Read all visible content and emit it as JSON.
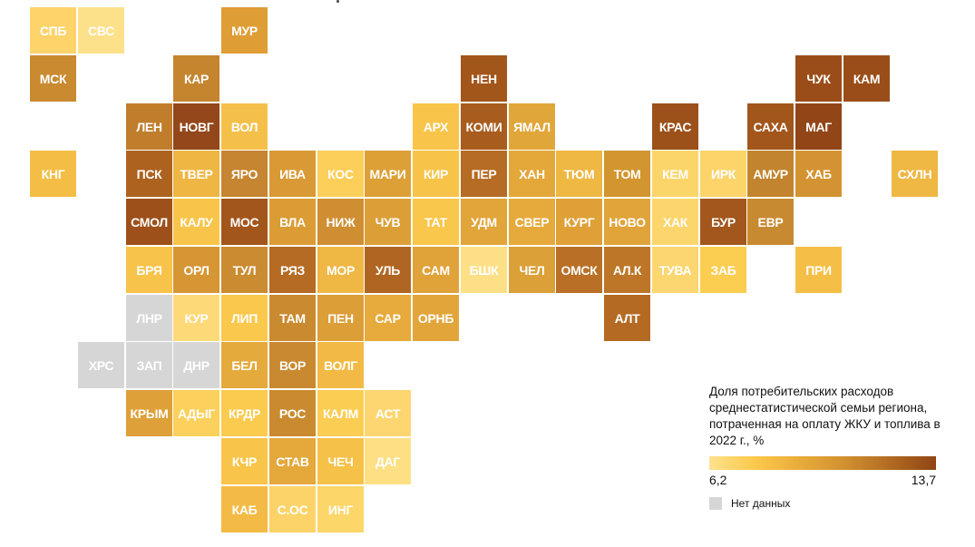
{
  "map": {
    "type": "tile-grid",
    "no_data_color": "#d6d6d6",
    "tiles": [
      {
        "label": "СПБ",
        "col": 0,
        "row": 0,
        "color": "#fdd36a"
      },
      {
        "label": "СВС",
        "col": 1,
        "row": 0,
        "color": "#fde08a"
      },
      {
        "label": "МУР",
        "col": 4,
        "row": 0,
        "color": "#df9d35"
      },
      {
        "label": "МСК",
        "col": 0,
        "row": 1,
        "color": "#c98a30"
      },
      {
        "label": "КАР",
        "col": 3,
        "row": 1,
        "color": "#c5852f"
      },
      {
        "label": "НЕН",
        "col": 9,
        "row": 1,
        "color": "#a3561a"
      },
      {
        "label": "ЧУК",
        "col": 16,
        "row": 1,
        "color": "#9a4d18"
      },
      {
        "label": "КАМ",
        "col": 17,
        "row": 1,
        "color": "#9a4d18"
      },
      {
        "label": "ЛЕН",
        "col": 2,
        "row": 2,
        "color": "#c07e2c"
      },
      {
        "label": "НОВГ",
        "col": 3,
        "row": 2,
        "color": "#93471a"
      },
      {
        "label": "ВОЛ",
        "col": 4,
        "row": 2,
        "color": "#f5c04a"
      },
      {
        "label": "АРХ",
        "col": 8,
        "row": 2,
        "color": "#f8c54a"
      },
      {
        "label": "КОМИ",
        "col": 9,
        "row": 2,
        "color": "#a85c1e"
      },
      {
        "label": "ЯМАЛ",
        "col": 10,
        "row": 2,
        "color": "#e1a63a"
      },
      {
        "label": "КРАС",
        "col": 13,
        "row": 2,
        "color": "#9c511a"
      },
      {
        "label": "САХА",
        "col": 15,
        "row": 2,
        "color": "#a2561c"
      },
      {
        "label": "МАГ",
        "col": 16,
        "row": 2,
        "color": "#924618"
      },
      {
        "label": "КНГ",
        "col": 0,
        "row": 3,
        "color": "#f4bd45"
      },
      {
        "label": "ПСК",
        "col": 2,
        "row": 3,
        "color": "#ad6220"
      },
      {
        "label": "ТВЕР",
        "col": 3,
        "row": 3,
        "color": "#efb644"
      },
      {
        "label": "ЯРО",
        "col": 4,
        "row": 3,
        "color": "#c68530"
      },
      {
        "label": "ИВА",
        "col": 5,
        "row": 3,
        "color": "#d99a35"
      },
      {
        "label": "КОС",
        "col": 6,
        "row": 3,
        "color": "#fbcf5a"
      },
      {
        "label": "МАРИ",
        "col": 7,
        "row": 3,
        "color": "#dca037"
      },
      {
        "label": "КИР",
        "col": 8,
        "row": 3,
        "color": "#f7c449"
      },
      {
        "label": "ПЕР",
        "col": 9,
        "row": 3,
        "color": "#b66c24"
      },
      {
        "label": "ХАН",
        "col": 10,
        "row": 3,
        "color": "#e3a73a"
      },
      {
        "label": "ТЮМ",
        "col": 11,
        "row": 3,
        "color": "#efb843"
      },
      {
        "label": "ТОМ",
        "col": 12,
        "row": 3,
        "color": "#d3952f"
      },
      {
        "label": "КЕМ",
        "col": 13,
        "row": 3,
        "color": "#fcd56a"
      },
      {
        "label": "ИРК",
        "col": 14,
        "row": 3,
        "color": "#fcd46a"
      },
      {
        "label": "АМУР",
        "col": 15,
        "row": 3,
        "color": "#c2842e"
      },
      {
        "label": "ХАБ",
        "col": 16,
        "row": 3,
        "color": "#d49332"
      },
      {
        "label": "СХЛН",
        "col": 18,
        "row": 3,
        "color": "#efb743"
      },
      {
        "label": "СМОЛ",
        "col": 2,
        "row": 4,
        "color": "#9d501a"
      },
      {
        "label": "КАЛУ",
        "col": 3,
        "row": 4,
        "color": "#f8c54a"
      },
      {
        "label": "МОС",
        "col": 4,
        "row": 4,
        "color": "#a3561c"
      },
      {
        "label": "ВЛА",
        "col": 5,
        "row": 4,
        "color": "#db9c36"
      },
      {
        "label": "НИЖ",
        "col": 6,
        "row": 4,
        "color": "#cf8e32"
      },
      {
        "label": "ЧУВ",
        "col": 7,
        "row": 4,
        "color": "#dc9f37"
      },
      {
        "label": "ТАТ",
        "col": 8,
        "row": 4,
        "color": "#f9c74b"
      },
      {
        "label": "УДМ",
        "col": 9,
        "row": 4,
        "color": "#e2a53a"
      },
      {
        "label": "СВЕР",
        "col": 10,
        "row": 4,
        "color": "#e6aa3c"
      },
      {
        "label": "КУРГ",
        "col": 11,
        "row": 4,
        "color": "#dfa037"
      },
      {
        "label": "НОВО",
        "col": 12,
        "row": 4,
        "color": "#e1a43a"
      },
      {
        "label": "ХАК",
        "col": 13,
        "row": 4,
        "color": "#fcd66c"
      },
      {
        "label": "БУР",
        "col": 14,
        "row": 4,
        "color": "#a3571d"
      },
      {
        "label": "ЕВР",
        "col": 15,
        "row": 4,
        "color": "#c88a31"
      },
      {
        "label": "БРЯ",
        "col": 2,
        "row": 5,
        "color": "#f7c34a"
      },
      {
        "label": "ОРЛ",
        "col": 3,
        "row": 5,
        "color": "#d69634"
      },
      {
        "label": "ТУЛ",
        "col": 4,
        "row": 5,
        "color": "#cb8b31"
      },
      {
        "label": "РЯЗ",
        "col": 5,
        "row": 5,
        "color": "#b56b24"
      },
      {
        "label": "МОР",
        "col": 6,
        "row": 5,
        "color": "#efb744"
      },
      {
        "label": "УЛЬ",
        "col": 7,
        "row": 5,
        "color": "#b06622"
      },
      {
        "label": "САМ",
        "col": 8,
        "row": 5,
        "color": "#e0a339"
      },
      {
        "label": "БШК",
        "col": 9,
        "row": 5,
        "color": "#fde086"
      },
      {
        "label": "ЧЕЛ",
        "col": 10,
        "row": 5,
        "color": "#dba037"
      },
      {
        "label": "ОМСК",
        "col": 11,
        "row": 5,
        "color": "#b97026"
      },
      {
        "label": "АЛ.К",
        "col": 12,
        "row": 5,
        "color": "#bd7628"
      },
      {
        "label": "ТУВА",
        "col": 13,
        "row": 5,
        "color": "#fcd670"
      },
      {
        "label": "ЗАБ",
        "col": 14,
        "row": 5,
        "color": "#fbcd50"
      },
      {
        "label": "ПРИ",
        "col": 16,
        "row": 5,
        "color": "#f5bf47"
      },
      {
        "label": "ЛНР",
        "col": 2,
        "row": 6,
        "color": "#d6d6d6",
        "no_data": true
      },
      {
        "label": "КУР",
        "col": 3,
        "row": 6,
        "color": "#fdd978"
      },
      {
        "label": "ЛИП",
        "col": 4,
        "row": 6,
        "color": "#f9c84c"
      },
      {
        "label": "ТАМ",
        "col": 5,
        "row": 6,
        "color": "#c98a30"
      },
      {
        "label": "ПЕН",
        "col": 6,
        "row": 6,
        "color": "#dc9e37"
      },
      {
        "label": "САР",
        "col": 7,
        "row": 6,
        "color": "#e6ab3c"
      },
      {
        "label": "ОРНБ",
        "col": 8,
        "row": 6,
        "color": "#e1a53a"
      },
      {
        "label": "АЛТ",
        "col": 12,
        "row": 6,
        "color": "#b46a23"
      },
      {
        "label": "ХРС",
        "col": 1,
        "row": 7,
        "color": "#d6d6d6",
        "no_data": true
      },
      {
        "label": "ЗАП",
        "col": 2,
        "row": 7,
        "color": "#d6d6d6",
        "no_data": true
      },
      {
        "label": "ДНР",
        "col": 3,
        "row": 7,
        "color": "#d6d6d6",
        "no_data": true
      },
      {
        "label": "БЕЛ",
        "col": 4,
        "row": 7,
        "color": "#e5aa3c"
      },
      {
        "label": "ВОР",
        "col": 5,
        "row": 7,
        "color": "#c98930"
      },
      {
        "label": "ВОЛГ",
        "col": 6,
        "row": 7,
        "color": "#f2ba45"
      },
      {
        "label": "КРЫМ",
        "col": 2,
        "row": 8,
        "color": "#dea038"
      },
      {
        "label": "АДЫГ",
        "col": 3,
        "row": 8,
        "color": "#fcd05c"
      },
      {
        "label": "КРДР",
        "col": 4,
        "row": 8,
        "color": "#fbcb4f"
      },
      {
        "label": "РОС",
        "col": 5,
        "row": 8,
        "color": "#c98a30"
      },
      {
        "label": "КАЛМ",
        "col": 6,
        "row": 8,
        "color": "#fbcd53"
      },
      {
        "label": "АСТ",
        "col": 7,
        "row": 8,
        "color": "#fdd671"
      },
      {
        "label": "КЧР",
        "col": 4,
        "row": 9,
        "color": "#f8c54a"
      },
      {
        "label": "СТАВ",
        "col": 5,
        "row": 9,
        "color": "#e4a83b"
      },
      {
        "label": "ЧЕЧ",
        "col": 6,
        "row": 9,
        "color": "#f6c148"
      },
      {
        "label": "ДАГ",
        "col": 7,
        "row": 9,
        "color": "#fde083"
      },
      {
        "label": "КАБ",
        "col": 4,
        "row": 10,
        "color": "#f3bb45"
      },
      {
        "label": "С.ОС",
        "col": 5,
        "row": 10,
        "color": "#fcd368"
      },
      {
        "label": "ИНГ",
        "col": 6,
        "row": 10,
        "color": "#fcd669"
      }
    ]
  },
  "legend": {
    "title": "Доля потребительских расходов среднестатистической семьи региона, потраченная на оплату ЖКУ и топлива в 2022 г., %",
    "min_label": "6,2",
    "max_label": "13,7",
    "min_value": 6.2,
    "max_value": 13.7,
    "gradient_colors": [
      "#fde28d",
      "#fcc94b",
      "#e8ac3a",
      "#d0902f",
      "#b26a22",
      "#8f4514"
    ],
    "no_data_label": "Нет данных"
  }
}
